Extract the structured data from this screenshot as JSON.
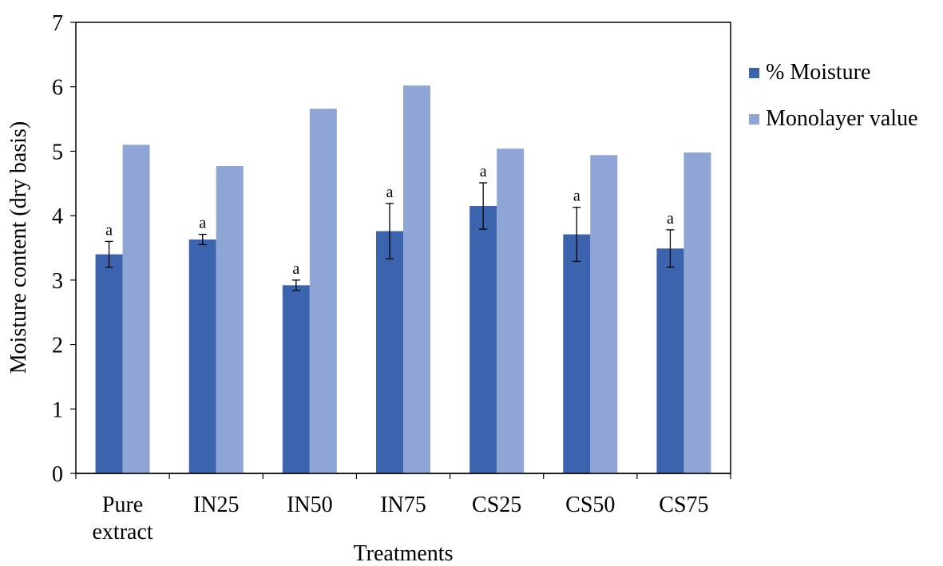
{
  "chart_data": {
    "type": "bar",
    "xlabel": "Treatments",
    "ylabel": "Moisture content (dry basis)",
    "ylim": [
      0,
      7
    ],
    "yticks": [
      0,
      1,
      2,
      3,
      4,
      5,
      6,
      7
    ],
    "categories": [
      [
        "Pure",
        "extract"
      ],
      [
        "IN25"
      ],
      [
        "IN50"
      ],
      [
        "IN75"
      ],
      [
        "CS25"
      ],
      [
        "CS50"
      ],
      [
        "CS75"
      ]
    ],
    "series": [
      {
        "name": "% Moisture",
        "color": "#3c63ae",
        "values": [
          3.4,
          3.63,
          2.92,
          3.76,
          4.15,
          3.71,
          3.49
        ],
        "errors": [
          0.2,
          0.08,
          0.08,
          0.43,
          0.36,
          0.42,
          0.29
        ],
        "labels": [
          "a",
          "a",
          "a",
          "a",
          "a",
          "a",
          "a"
        ]
      },
      {
        "name": "Monolayer value",
        "color": "#8ea5d6",
        "values": [
          5.1,
          4.77,
          5.66,
          6.02,
          5.04,
          4.94,
          4.98
        ]
      }
    ],
    "grid": false,
    "legend_position": "right"
  }
}
